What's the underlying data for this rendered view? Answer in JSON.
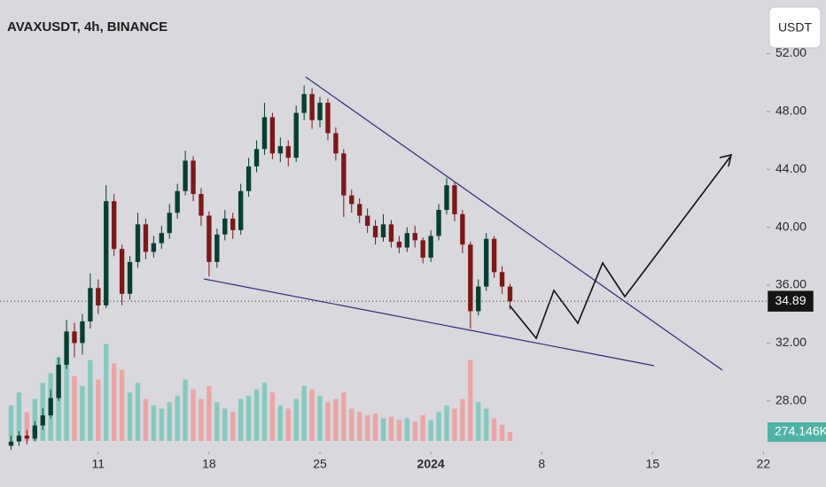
{
  "chart_data": {
    "type": "candlestick",
    "title": "AVAXUSDT, 4h, BINANCE",
    "currency": "USDT",
    "x": [
      5.5,
      6,
      6.5,
      7,
      7.5,
      8,
      8.5,
      9,
      9.5,
      10,
      10.5,
      11,
      11.5,
      12,
      12.5,
      13,
      13.5,
      14,
      14.5,
      15,
      15.5,
      16,
      16.5,
      17,
      17.5,
      18,
      18.5,
      19,
      19.5,
      20,
      20.5,
      21,
      21.5,
      22,
      22.5,
      23,
      23.5,
      24,
      24.5,
      25,
      25.5,
      26,
      26.5,
      27,
      27.5,
      28,
      28.5,
      29,
      29.5,
      30,
      30.5,
      31,
      31.5,
      32,
      32.5,
      33,
      33.5,
      34,
      34.5,
      35,
      35.5,
      36,
      36.5,
      37
    ],
    "open": [
      24.9,
      25.2,
      25.6,
      25.4,
      26.3,
      27.0,
      28.2,
      30.5,
      32.8,
      32.0,
      33.5,
      35.8,
      34.6,
      41.8,
      38.5,
      35.4,
      37.6,
      40.2,
      38.3,
      38.9,
      39.6,
      41.0,
      42.5,
      44.6,
      42.3,
      40.8,
      37.6,
      39.5,
      40.6,
      39.8,
      42.5,
      44.2,
      45.4,
      47.6,
      45.1,
      45.6,
      44.8,
      47.9,
      49.2,
      47.4,
      48.6,
      46.5,
      45.1,
      42.2,
      41.6,
      40.8,
      40.1,
      39.3,
      40.2,
      39.0,
      38.6,
      39.6,
      39.1,
      37.9,
      39.4,
      41.2,
      42.9,
      40.9,
      38.8,
      34.2,
      35.9,
      39.2,
      36.9,
      35.9
    ],
    "high": [
      25.6,
      25.9,
      26.0,
      26.6,
      27.5,
      28.8,
      31.0,
      33.6,
      33.4,
      34.0,
      36.8,
      36.4,
      42.9,
      42.3,
      38.8,
      38.0,
      41.0,
      40.6,
      39.4,
      40.1,
      41.6,
      43.0,
      45.3,
      44.9,
      42.7,
      41.1,
      39.9,
      41.2,
      41.0,
      43.0,
      44.8,
      46.0,
      48.6,
      47.9,
      46.2,
      46.0,
      48.4,
      49.8,
      49.6,
      49.0,
      48.9,
      46.9,
      45.4,
      42.6,
      42.0,
      41.3,
      40.5,
      40.9,
      40.5,
      39.4,
      40.0,
      40.1,
      39.3,
      39.8,
      41.6,
      43.4,
      43.1,
      41.2,
      39.0,
      36.4,
      39.6,
      39.4,
      37.3,
      36.1
    ],
    "low": [
      24.6,
      24.9,
      25.0,
      25.2,
      26.0,
      26.8,
      28.0,
      30.2,
      31.0,
      31.2,
      33.0,
      34.0,
      34.4,
      38.0,
      34.6,
      35.0,
      37.2,
      37.8,
      37.9,
      38.5,
      39.2,
      40.6,
      42.2,
      41.8,
      40.1,
      36.6,
      37.2,
      39.1,
      39.2,
      39.5,
      42.1,
      43.8,
      45.0,
      44.7,
      44.5,
      44.2,
      44.5,
      47.4,
      46.8,
      46.9,
      46.0,
      44.6,
      40.7,
      41.0,
      40.3,
      39.6,
      38.8,
      39.0,
      38.6,
      38.2,
      38.3,
      38.6,
      37.5,
      37.6,
      39.1,
      40.9,
      40.4,
      38.2,
      33.0,
      33.9,
      35.6,
      36.5,
      35.4,
      34.3
    ],
    "close": [
      25.2,
      25.6,
      25.4,
      26.3,
      27.0,
      28.2,
      30.5,
      32.8,
      32.0,
      33.5,
      35.8,
      34.6,
      41.8,
      38.5,
      35.4,
      37.6,
      40.2,
      38.3,
      38.9,
      39.6,
      41.0,
      42.5,
      44.6,
      42.3,
      40.8,
      37.6,
      39.5,
      40.6,
      39.8,
      42.5,
      44.2,
      45.4,
      47.6,
      45.1,
      45.6,
      44.8,
      47.9,
      49.2,
      47.4,
      48.6,
      46.5,
      45.1,
      42.2,
      41.6,
      40.8,
      40.1,
      39.3,
      40.2,
      39.0,
      38.6,
      39.6,
      39.1,
      37.9,
      39.4,
      41.2,
      42.9,
      40.9,
      38.8,
      34.2,
      35.9,
      39.2,
      36.9,
      35.9,
      34.89
    ],
    "volume": [
      1100000,
      1500000,
      900000,
      1300000,
      1800000,
      2100000,
      2600000,
      2900000,
      2000000,
      1700000,
      2500000,
      1900000,
      3000000,
      2400000,
      2200000,
      1500000,
      1800000,
      1300000,
      1100000,
      1000000,
      1200000,
      1400000,
      1900000,
      1600000,
      1300000,
      1700000,
      1200000,
      1000000,
      900000,
      1300000,
      1400000,
      1600000,
      1800000,
      1500000,
      1100000,
      1000000,
      1300000,
      1700000,
      1600000,
      1400000,
      1200000,
      1300000,
      1500000,
      1000000,
      900000,
      800000,
      850000,
      700000,
      750000,
      650000,
      700000,
      600000,
      800000,
      650000,
      900000,
      1100000,
      1000000,
      1300000,
      2500000,
      1200000,
      1000000,
      700000,
      500000,
      274146
    ],
    "volume_last_label": "274.146K",
    "up_color": "#073f31",
    "down_color": "#7d1818",
    "volume_up_color": "#86c9bf",
    "volume_down_color": "#eca5a5",
    "xlim": [
      4.8,
      53.2
    ],
    "xticks": [
      11,
      18,
      25,
      {
        "value": 32,
        "label": "2024"
      },
      {
        "value": 39,
        "label": "8"
      },
      {
        "value": 46,
        "label": "15"
      },
      {
        "value": 53,
        "label": "22"
      }
    ],
    "ylim": [
      24.5,
      55.7
    ],
    "yticks": [
      {
        "value": 52,
        "label": "52.00"
      },
      {
        "value": 48,
        "label": "48.00"
      },
      {
        "value": 44,
        "label": "44.00"
      },
      {
        "value": 40,
        "label": "40.00"
      },
      {
        "value": 36,
        "label": "36.00"
      },
      {
        "value": 32,
        "label": "32.00"
      },
      {
        "value": 28,
        "label": "28.00"
      }
    ],
    "y2lim": [
      0,
      13650000
    ]
  }
}
